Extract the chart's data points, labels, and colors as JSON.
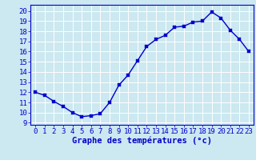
{
  "hours": [
    0,
    1,
    2,
    3,
    4,
    5,
    6,
    7,
    8,
    9,
    10,
    11,
    12,
    13,
    14,
    15,
    16,
    17,
    18,
    19,
    20,
    21,
    22,
    23
  ],
  "temperatures": [
    12.0,
    11.7,
    11.1,
    10.6,
    10.0,
    9.6,
    9.7,
    9.9,
    11.0,
    12.7,
    13.7,
    15.1,
    16.5,
    17.2,
    17.6,
    18.4,
    18.5,
    18.9,
    19.0,
    19.9,
    19.3,
    18.1,
    17.2,
    16.0
  ],
  "line_color": "#0000cc",
  "marker_color": "#0000cc",
  "bg_color": "#cce8f0",
  "grid_color": "#ffffff",
  "xlabel": "Graphe des températures (°c)",
  "ylabel_ticks": [
    9,
    10,
    11,
    12,
    13,
    14,
    15,
    16,
    17,
    18,
    19,
    20
  ],
  "ylim": [
    8.8,
    20.6
  ],
  "xlim": [
    -0.5,
    23.5
  ],
  "xlabel_fontsize": 7.5,
  "tick_fontsize": 6.5,
  "line_width": 1.0,
  "marker_size": 2.5
}
